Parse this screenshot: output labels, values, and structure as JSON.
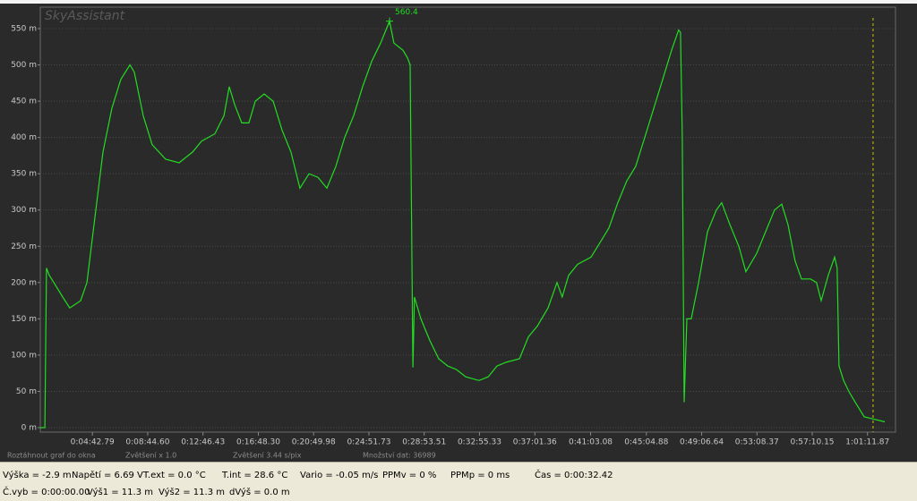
{
  "chart_data": {
    "type": "line",
    "title": "SkyAssistant",
    "x": [
      55,
      75,
      82,
      94,
      114,
      153,
      184,
      231,
      259,
      290,
      329,
      368,
      407,
      447,
      466,
      505,
      544,
      603,
      662,
      721,
      760,
      818,
      858,
      881,
      905,
      936,
      967,
      995,
      1034,
      1073,
      1112,
      1151,
      1190,
      1230,
      1269,
      1308,
      1347,
      1386,
      1425,
      1464,
      1504,
      1543,
      1582,
      1601,
      1641,
      1660,
      1672,
      1684,
      1691,
      1719,
      1758,
      1797,
      1836,
      1875,
      1915,
      1973,
      2013,
      2052,
      2091,
      2150,
      2189,
      2228,
      2275,
      2314,
      2337,
      2365,
      2404,
      2463,
      2502,
      2541,
      2580,
      2619,
      2658,
      2698,
      2737,
      2776,
      2815,
      2846,
      2854,
      2862,
      2870,
      2882,
      2901,
      2933,
      2972,
      3011,
      3034,
      3070,
      3109,
      3140,
      3187,
      3226,
      3265,
      3297,
      3324,
      3355,
      3383,
      3422,
      3449,
      3469,
      3500,
      3528,
      3539,
      3547,
      3567,
      3590,
      3618,
      3657,
      3696,
      3747
    ],
    "series": [
      {
        "name": "Výška",
        "color": "#22dd22",
        "values": [
          0,
          0,
          220,
          210,
          200,
          180,
          165,
          175,
          200,
          280,
          380,
          440,
          480,
          500,
          490,
          430,
          390,
          370,
          365,
          380,
          395,
          405,
          430,
          470,
          445,
          420,
          420,
          450,
          460,
          450,
          410,
          380,
          330,
          350,
          345,
          330,
          360,
          400,
          430,
          470,
          505,
          530,
          560.4,
          530,
          520,
          510,
          500,
          83,
          180,
          150,
          120,
          95,
          85,
          80,
          70,
          65,
          70,
          85,
          90,
          95,
          125,
          140,
          165,
          200,
          180,
          210,
          225,
          235,
          255,
          275,
          310,
          340,
          360,
          400,
          440,
          480,
          520,
          548,
          545,
          400,
          35,
          150,
          150,
          200,
          270,
          300,
          310,
          280,
          250,
          215,
          240,
          270,
          300,
          308,
          280,
          230,
          205,
          205,
          200,
          175,
          210,
          235,
          220,
          85,
          65,
          50,
          35,
          15,
          12,
          8
        ]
      }
    ],
    "xlim": [
      55,
      3755
    ],
    "ylim": [
      0,
      550
    ],
    "xticks": [
      {
        "value": 282.79,
        "label": "0:04:42.79"
      },
      {
        "value": 524.6,
        "label": "0:08:44.60"
      },
      {
        "value": 766.43,
        "label": "0:12:46.43"
      },
      {
        "value": 1008.3,
        "label": "0:16:48.30"
      },
      {
        "value": 1249.98,
        "label": "0:20:49.98"
      },
      {
        "value": 1491.73,
        "label": "0:24:51.73"
      },
      {
        "value": 1733.51,
        "label": "0:28:53.51"
      },
      {
        "value": 1975.33,
        "label": "0:32:55.33"
      },
      {
        "value": 2217.36,
        "label": "0:37:01.36"
      },
      {
        "value": 2461.08,
        "label": "0:41:03.08"
      },
      {
        "value": 2704.88,
        "label": "0:45:04.88"
      },
      {
        "value": 2946.64,
        "label": "0:49:06.64"
      },
      {
        "value": 3188.37,
        "label": "0:53:08.37"
      },
      {
        "value": 3430.15,
        "label": "0:57:10.15"
      },
      {
        "value": 3671.87,
        "label": "1:01:11.87"
      }
    ],
    "yticks": [
      {
        "value": 0,
        "label": "0 m"
      },
      {
        "value": 50,
        "label": "50 m"
      },
      {
        "value": 100,
        "label": "100 m"
      },
      {
        "value": 150,
        "label": "150 m"
      },
      {
        "value": 200,
        "label": "200 m"
      },
      {
        "value": 250,
        "label": "250 m"
      },
      {
        "value": 300,
        "label": "300 m"
      },
      {
        "value": 350,
        "label": "350 m"
      },
      {
        "value": 400,
        "label": "400 m"
      },
      {
        "value": 450,
        "label": "450 m"
      },
      {
        "value": 500,
        "label": "500 m"
      },
      {
        "value": 550,
        "label": "550 m"
      }
    ],
    "grid": true,
    "annotations": [
      {
        "x": 1582,
        "y": 560.4,
        "text": "560.4"
      }
    ],
    "markers": [
      {
        "x": 3696,
        "color": "#c8c800"
      }
    ]
  },
  "footer": [
    "Roztáhnout graf do okna",
    "Zvětšení x 1.0",
    "Zvětšení  3.44 s/pix",
    "Množství dat: 36989"
  ],
  "status_bar": [
    [
      "Výška = -2.9 m",
      "Napětí = 6.69 V",
      "T.ext = 0.0 °C",
      "T.int = 28.6 °C",
      "Vario = -0.05 m/s",
      "PPMv = 0 %",
      "PPMp = 0 ms",
      "Čas = 0:00:32.42"
    ],
    [
      "Č.vyb = 0:00:00.00",
      "Výš1 = 11.3 m",
      "Výš2 = 11.3 m",
      "dVýš = 0.0 m"
    ]
  ]
}
